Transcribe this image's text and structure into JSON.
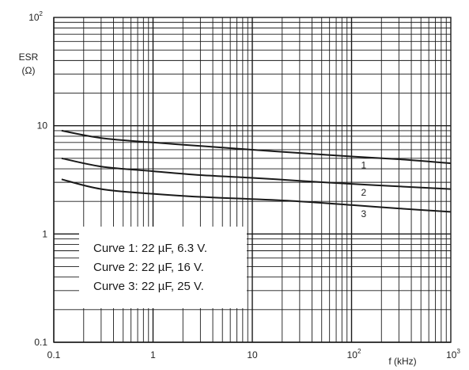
{
  "chart_data": {
    "type": "line",
    "x_scale": "log",
    "y_scale": "log",
    "xlim": [
      0.1,
      1000
    ],
    "ylim": [
      0.1,
      100
    ],
    "grid": true,
    "xlabel": "f (kHz)",
    "ylabel": "ESR",
    "ylabel_unit": "(Ω)",
    "x_ticks": [
      {
        "value": 0.1,
        "base": "0.1",
        "exp": ""
      },
      {
        "value": 1,
        "base": "1",
        "exp": ""
      },
      {
        "value": 10,
        "base": "10",
        "exp": ""
      },
      {
        "value": 100,
        "base": "10",
        "exp": "2"
      },
      {
        "value": 1000,
        "base": "10",
        "exp": "3"
      }
    ],
    "y_ticks": [
      {
        "value": 0.1,
        "base": "0.1",
        "exp": ""
      },
      {
        "value": 1,
        "base": "1",
        "exp": ""
      },
      {
        "value": 10,
        "base": "10",
        "exp": ""
      },
      {
        "value": 100,
        "base": "10",
        "exp": "2"
      }
    ],
    "series": [
      {
        "name": "1",
        "x": [
          0.12,
          0.3,
          1,
          3,
          10,
          30,
          100,
          300,
          1000
        ],
        "y": [
          9.0,
          7.7,
          7.0,
          6.5,
          6.0,
          5.6,
          5.2,
          4.9,
          4.5
        ]
      },
      {
        "name": "2",
        "x": [
          0.12,
          0.3,
          1,
          3,
          10,
          30,
          100,
          300,
          1000
        ],
        "y": [
          5.0,
          4.2,
          3.8,
          3.5,
          3.3,
          3.1,
          2.9,
          2.75,
          2.6
        ]
      },
      {
        "name": "3",
        "x": [
          0.12,
          0.3,
          1,
          3,
          10,
          30,
          100,
          300,
          1000
        ],
        "y": [
          3.2,
          2.6,
          2.35,
          2.2,
          2.1,
          2.0,
          1.85,
          1.72,
          1.6
        ]
      }
    ],
    "legend_lines": [
      "Curve 1: 22 µF, 6.3 V.",
      "Curve 2: 22 µF, 16 V.",
      "Curve 3: 22 µF, 25 V."
    ]
  }
}
